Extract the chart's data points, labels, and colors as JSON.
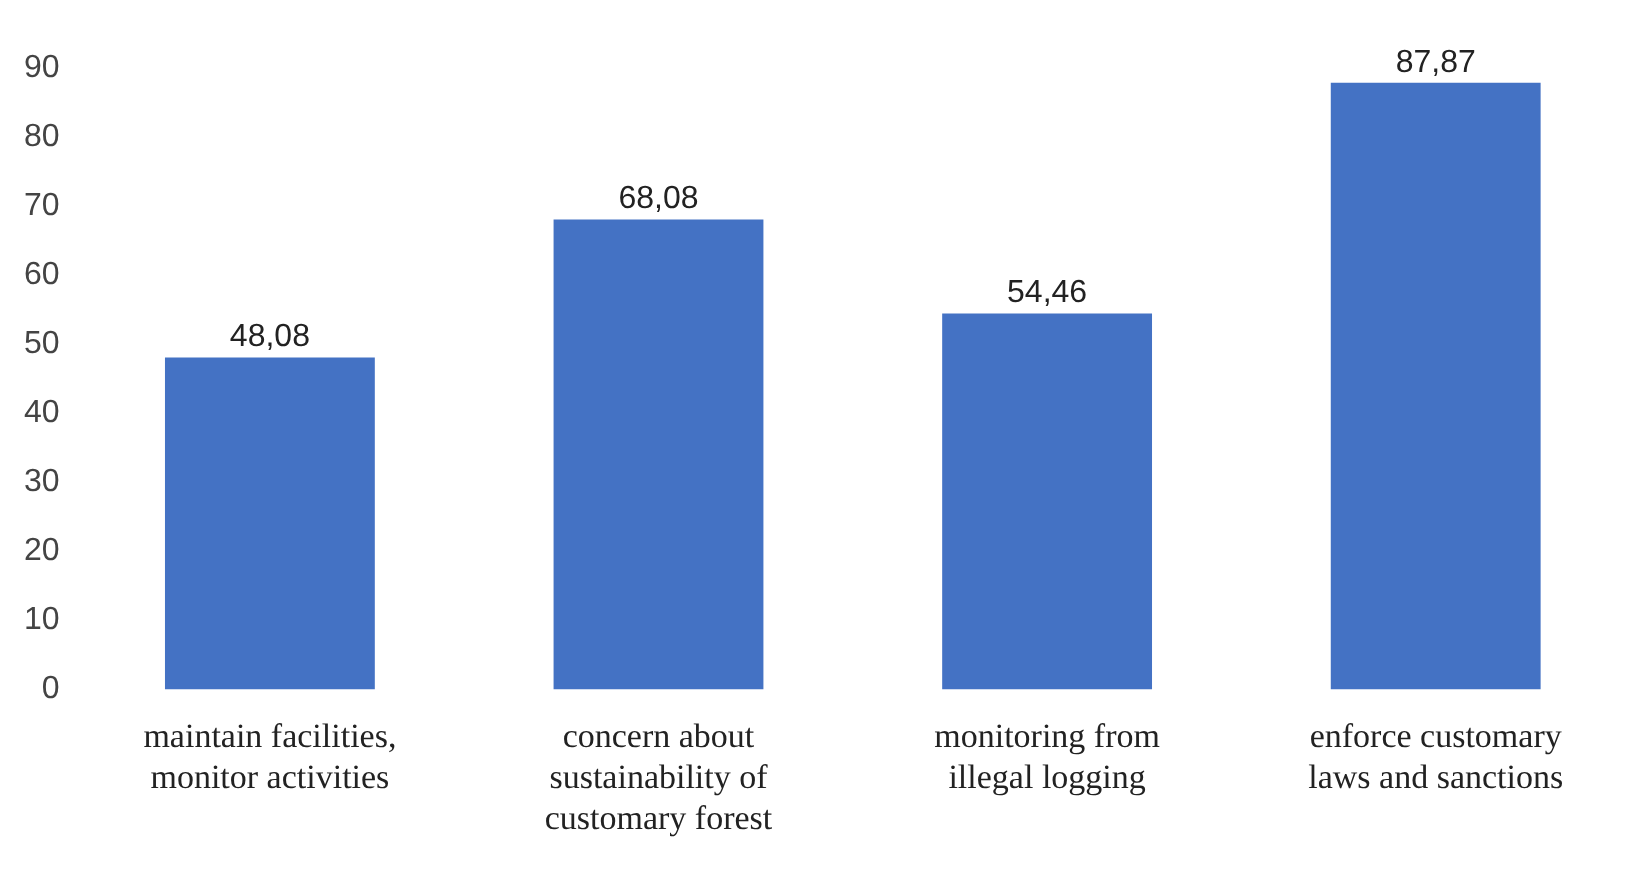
{
  "chart_data": {
    "type": "bar",
    "categories": [
      "maintain facilities, monitor activities",
      "concern about sustainability of customary forest",
      "monitoring from illegal logging",
      "enforce customary laws and sanctions"
    ],
    "values": [
      48.08,
      68.08,
      54.46,
      87.87
    ],
    "value_labels": [
      "48,08",
      "68,08",
      "54,46",
      "87,87"
    ],
    "color": "#4472c4",
    "ylim": [
      0,
      90
    ],
    "yticks": [
      0,
      10,
      20,
      30,
      40,
      50,
      60,
      70,
      80,
      90
    ],
    "grid": false,
    "legend": false
  }
}
